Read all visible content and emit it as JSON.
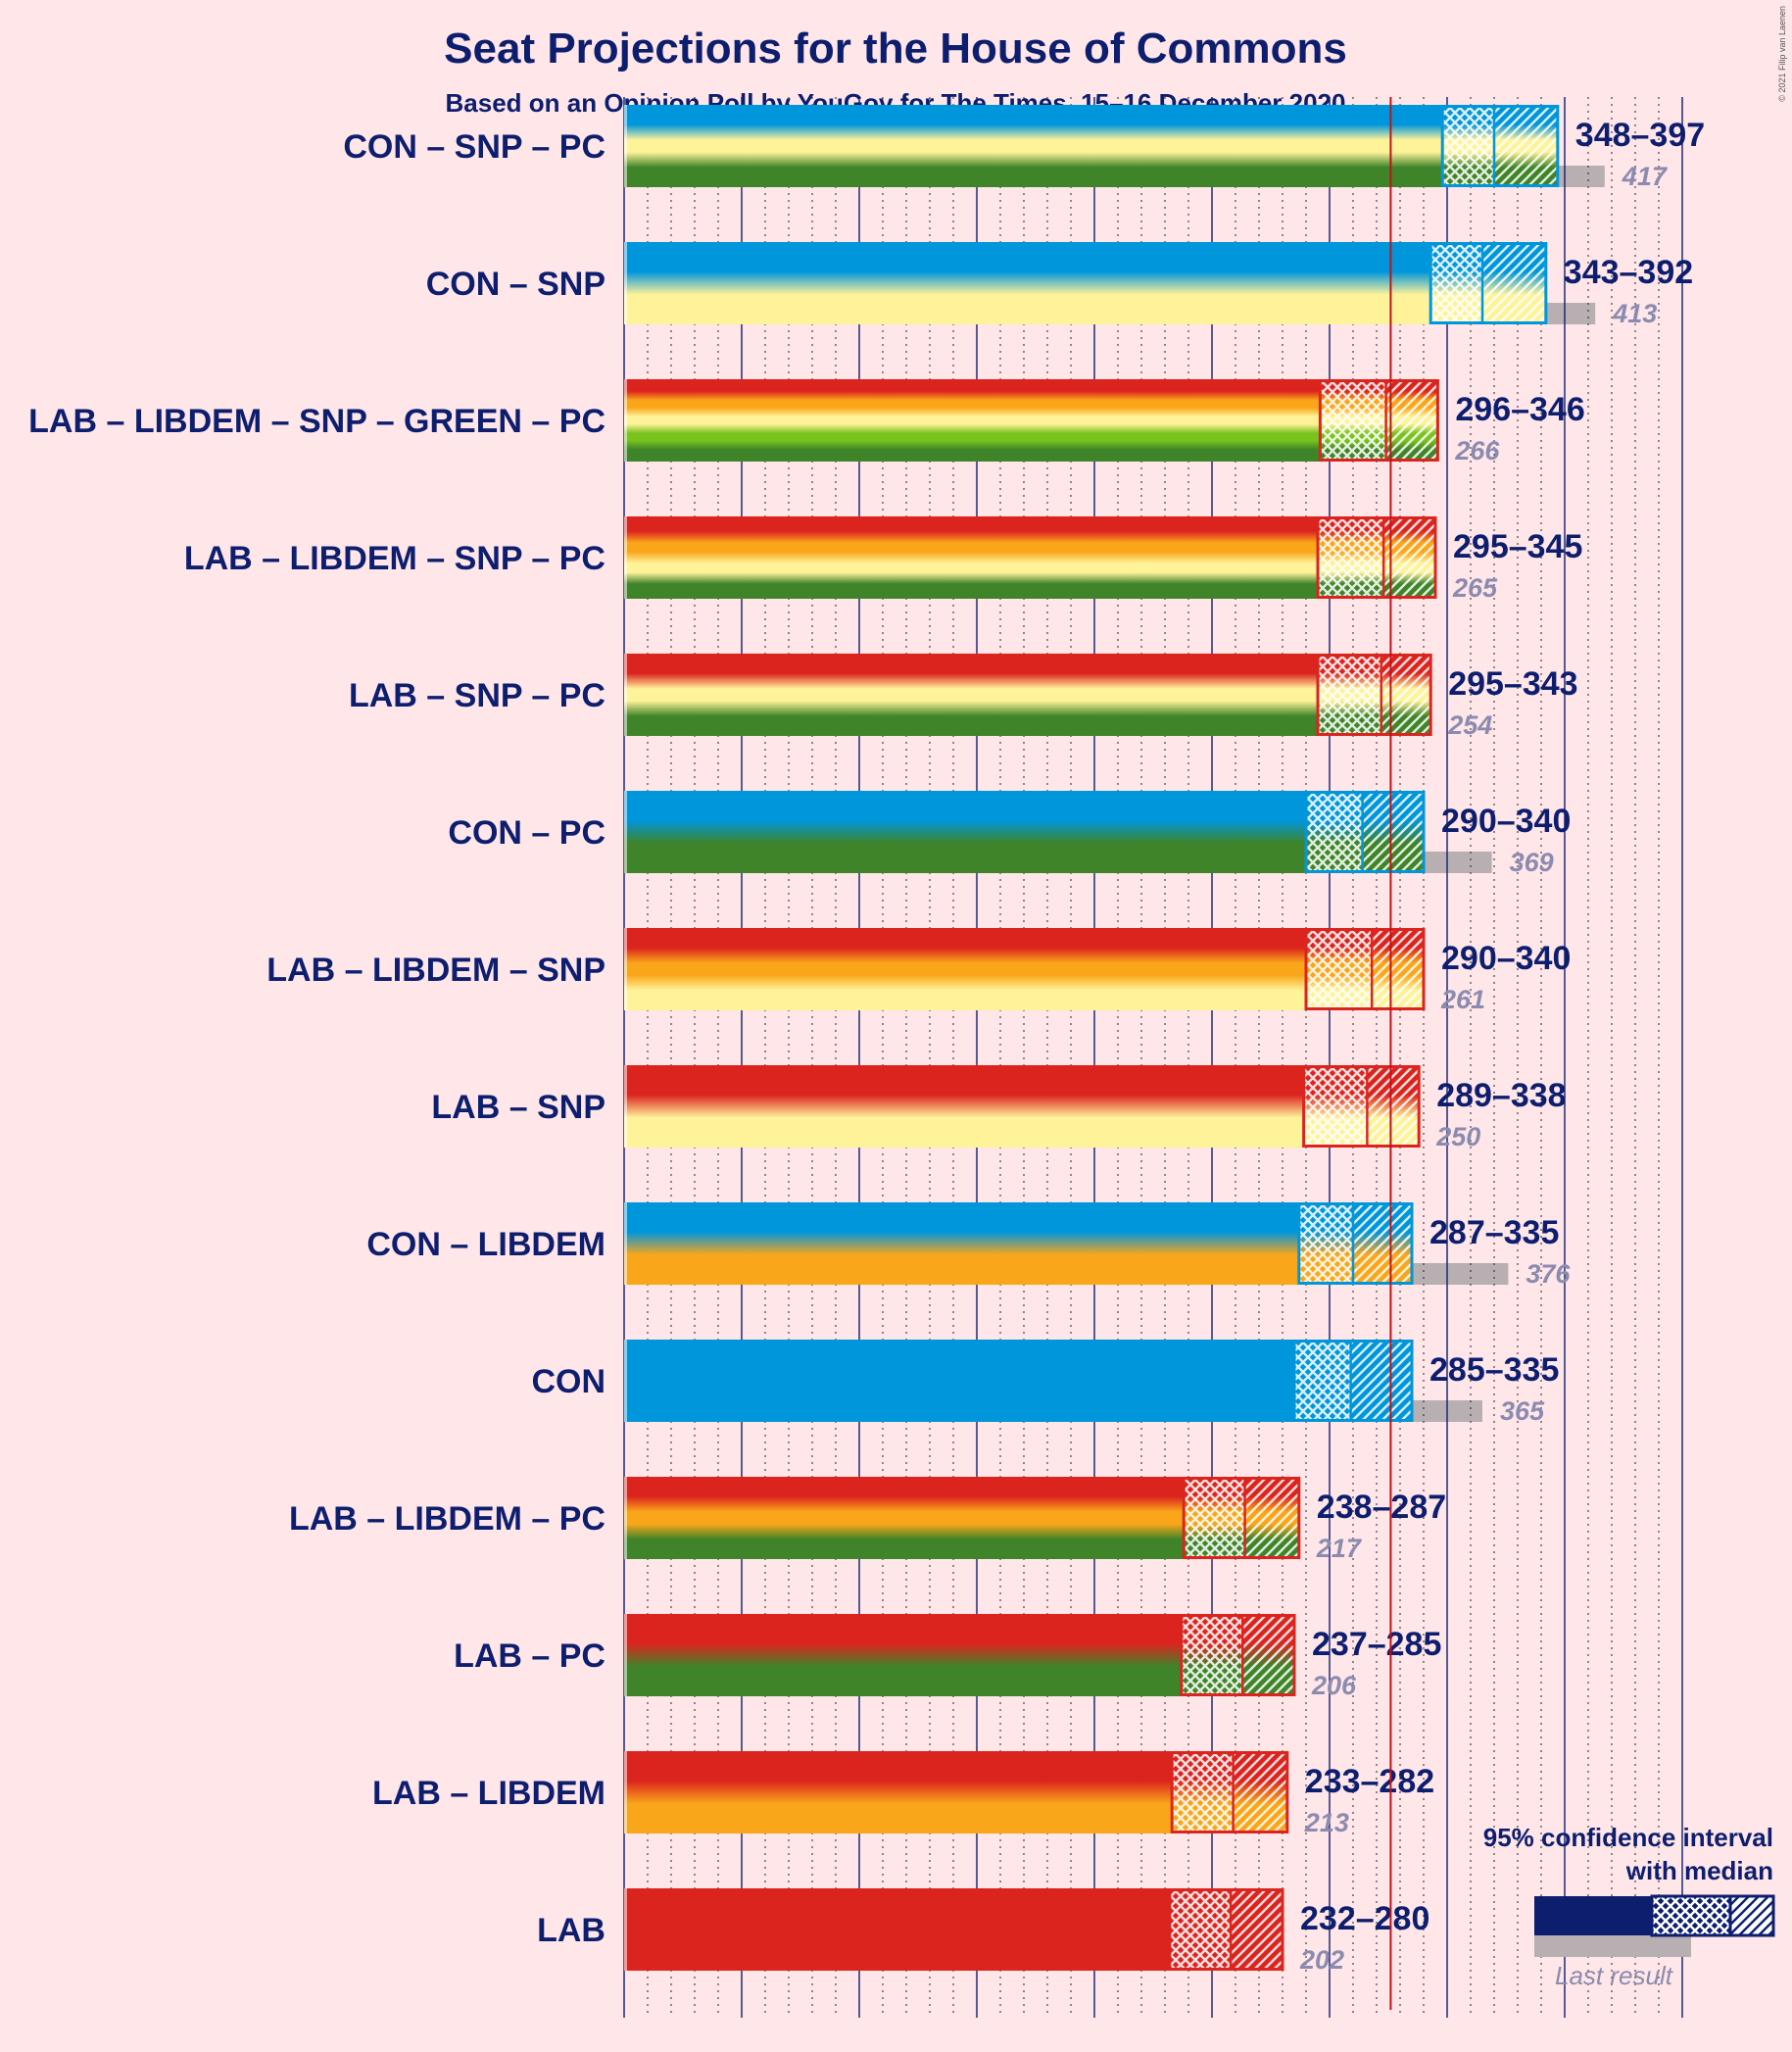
{
  "colors": {
    "CON": "#0096DB",
    "LAB": "#DC241F",
    "LIBDEM": "#FAA61A",
    "SNP": "#FFF39A",
    "PC": "#3F8428",
    "GREEN": "#78C31E",
    "text": "#0D1E6F",
    "last_bar": "#B7AFB2",
    "majority_line": "#C0121A",
    "background": "#FFE6E8"
  },
  "credit": "© 2021 Filip van Laenen",
  "chart_data": {
    "type": "bar",
    "orientation": "horizontal",
    "title": "Seat Projections for the House of Commons",
    "subtitle": "Based on an Opinion Poll by YouGov for The Times, 15–16 December 2020",
    "xlim": [
      0,
      450
    ],
    "majority_threshold": 326,
    "major_gridlines": [
      0,
      50,
      100,
      150,
      200,
      250,
      300,
      350,
      400
    ],
    "minor_step": 10,
    "categories": [
      {
        "label": "CON – SNP – PC",
        "parties": [
          "CON",
          "SNP",
          "PC"
        ],
        "low": 348,
        "median": 370,
        "high": 397,
        "range_text": "348–397",
        "last": 417,
        "last_text": "417"
      },
      {
        "label": "CON – SNP",
        "parties": [
          "CON",
          "SNP"
        ],
        "low": 343,
        "median": 365,
        "high": 392,
        "range_text": "343–392",
        "last": 413,
        "last_text": "413"
      },
      {
        "label": "LAB – LIBDEM – SNP – GREEN – PC",
        "parties": [
          "LAB",
          "LIBDEM",
          "SNP",
          "GREEN",
          "PC"
        ],
        "low": 296,
        "median": 324,
        "high": 346,
        "range_text": "296–346",
        "last": 266,
        "last_text": "266"
      },
      {
        "label": "LAB – LIBDEM – SNP – PC",
        "parties": [
          "LAB",
          "LIBDEM",
          "SNP",
          "PC"
        ],
        "low": 295,
        "median": 323,
        "high": 345,
        "range_text": "295–345",
        "last": 265,
        "last_text": "265"
      },
      {
        "label": "LAB – SNP – PC",
        "parties": [
          "LAB",
          "SNP",
          "PC"
        ],
        "low": 295,
        "median": 322,
        "high": 343,
        "range_text": "295–343",
        "last": 254,
        "last_text": "254"
      },
      {
        "label": "CON – PC",
        "parties": [
          "CON",
          "PC"
        ],
        "low": 290,
        "median": 314,
        "high": 340,
        "range_text": "290–340",
        "last": 369,
        "last_text": "369"
      },
      {
        "label": "LAB – LIBDEM – SNP",
        "parties": [
          "LAB",
          "LIBDEM",
          "SNP"
        ],
        "low": 290,
        "median": 318,
        "high": 340,
        "range_text": "290–340",
        "last": 261,
        "last_text": "261"
      },
      {
        "label": "LAB – SNP",
        "parties": [
          "LAB",
          "SNP"
        ],
        "low": 289,
        "median": 316,
        "high": 338,
        "range_text": "289–338",
        "last": 250,
        "last_text": "250"
      },
      {
        "label": "CON – LIBDEM",
        "parties": [
          "CON",
          "LIBDEM"
        ],
        "low": 287,
        "median": 310,
        "high": 335,
        "range_text": "287–335",
        "last": 376,
        "last_text": "376"
      },
      {
        "label": "CON",
        "parties": [
          "CON"
        ],
        "low": 285,
        "median": 309,
        "high": 335,
        "range_text": "285–335",
        "last": 365,
        "last_text": "365"
      },
      {
        "label": "LAB – LIBDEM – PC",
        "parties": [
          "LAB",
          "LIBDEM",
          "PC"
        ],
        "low": 238,
        "median": 264,
        "high": 287,
        "range_text": "238–287",
        "last": 217,
        "last_text": "217"
      },
      {
        "label": "LAB – PC",
        "parties": [
          "LAB",
          "PC"
        ],
        "low": 237,
        "median": 263,
        "high": 285,
        "range_text": "237–285",
        "last": 206,
        "last_text": "206"
      },
      {
        "label": "LAB – LIBDEM",
        "parties": [
          "LAB",
          "LIBDEM"
        ],
        "low": 233,
        "median": 259,
        "high": 282,
        "range_text": "233–282",
        "last": 213,
        "last_text": "213"
      },
      {
        "label": "LAB",
        "parties": [
          "LAB"
        ],
        "low": 232,
        "median": 258,
        "high": 280,
        "range_text": "232–280",
        "last": 202,
        "last_text": "202"
      }
    ],
    "legend": {
      "title_line1": "95% confidence interval",
      "title_line2": "with median",
      "last_result": "Last result"
    }
  }
}
